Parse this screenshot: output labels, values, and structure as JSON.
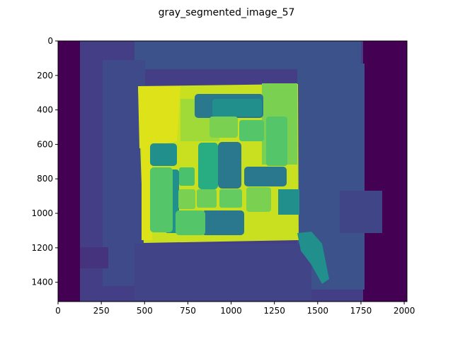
{
  "chart_data": {
    "type": "heatmap",
    "title": "gray_segmented_image_57",
    "colormap": "viridis",
    "xlim": [
      0,
      2016
    ],
    "ylim": [
      1512,
      0
    ],
    "x_ticks": [
      0,
      250,
      500,
      750,
      1000,
      1250,
      1500,
      1750,
      2000
    ],
    "y_ticks": [
      0,
      200,
      400,
      600,
      800,
      1000,
      1200,
      1400
    ],
    "grid": false,
    "colors": {
      "background_dark": "#440154",
      "outer_region": "#3b4f8a",
      "outer_region_alt": "#46337e",
      "inner_square": "#c8df34",
      "inner_square_alt": "#dde318",
      "segment_green": "#54c568",
      "segment_teal": "#21908d",
      "segment_blue_teal": "#2a788e"
    }
  }
}
